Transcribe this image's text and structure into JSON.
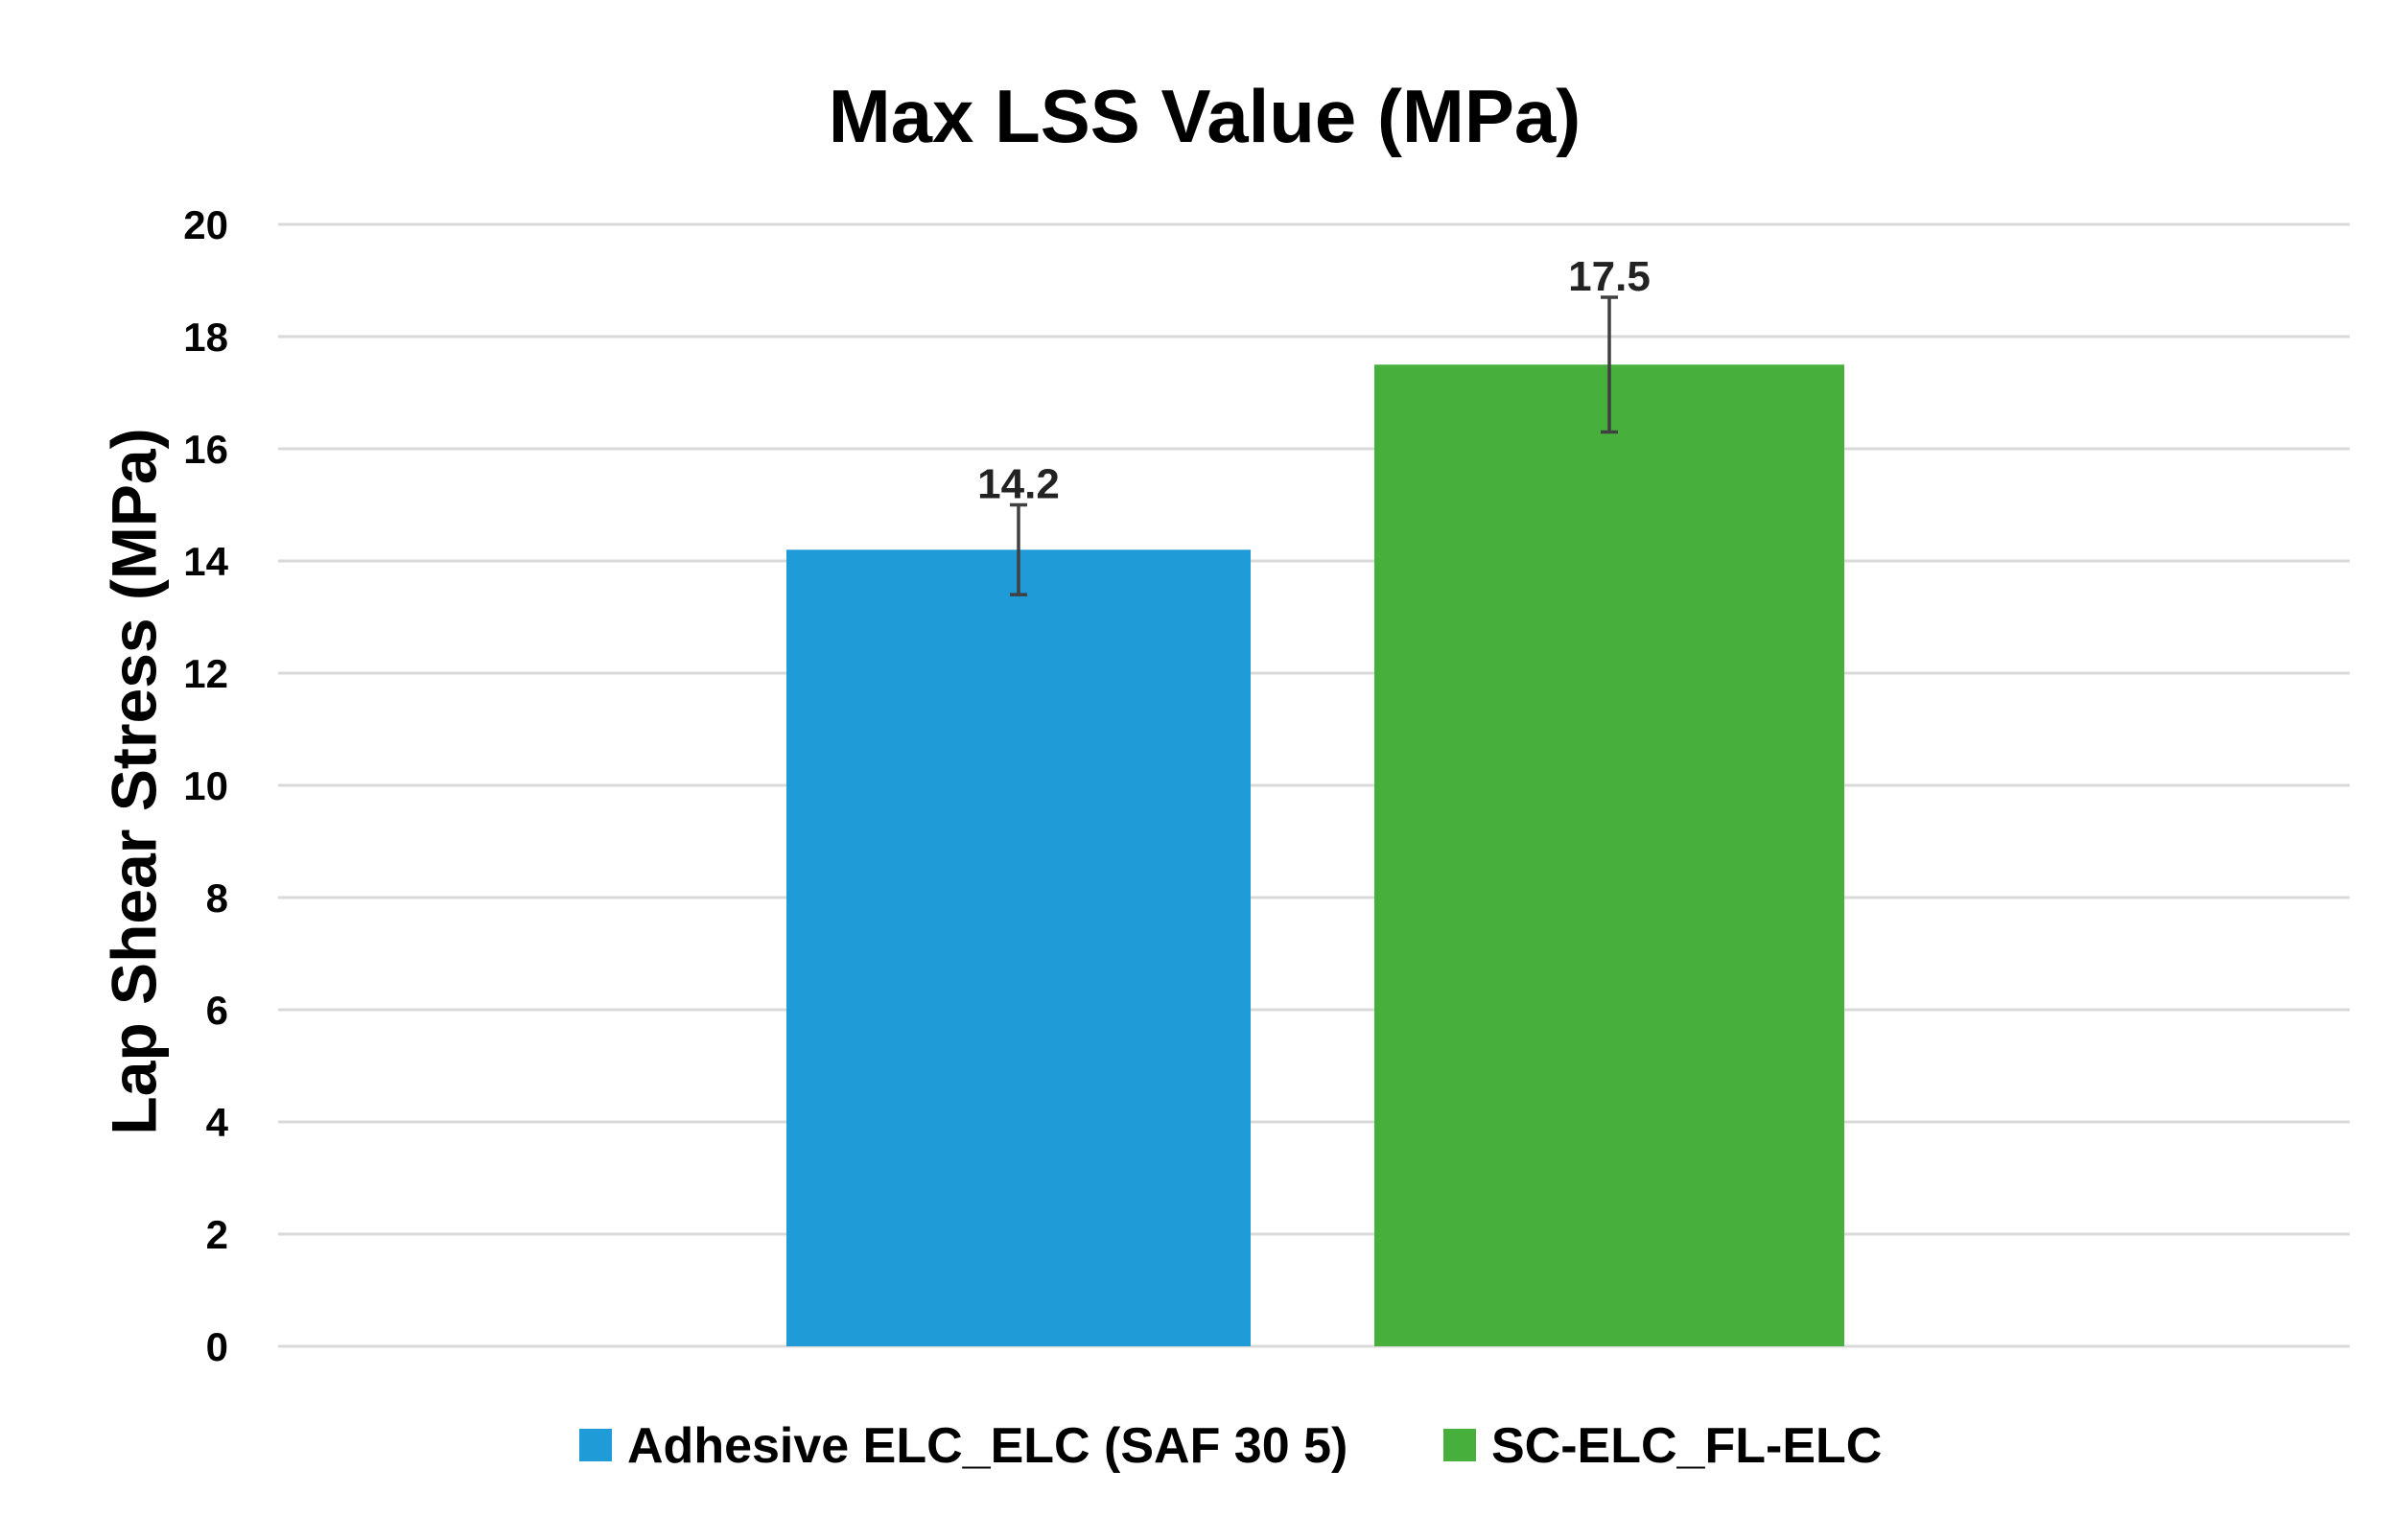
{
  "chart_data": {
    "type": "bar",
    "title": "Max LSS Value (MPa)",
    "xlabel": "",
    "ylabel": "Lap Shear Stress (MPa)",
    "ylim": [
      0,
      20
    ],
    "yticks": [
      0,
      2,
      4,
      6,
      8,
      10,
      12,
      14,
      16,
      18,
      20
    ],
    "grid": true,
    "legend_position": "bottom",
    "series": [
      {
        "name": "Adhesive ELC_ELC (SAF 30 5)",
        "value": 14.2,
        "error": 0.8,
        "label": "14.2",
        "color": "#1f9bd7"
      },
      {
        "name": "SC-ELC_FL-ELC",
        "value": 17.5,
        "error": 1.2,
        "label": "17.5",
        "color": "#47b03c"
      }
    ]
  }
}
